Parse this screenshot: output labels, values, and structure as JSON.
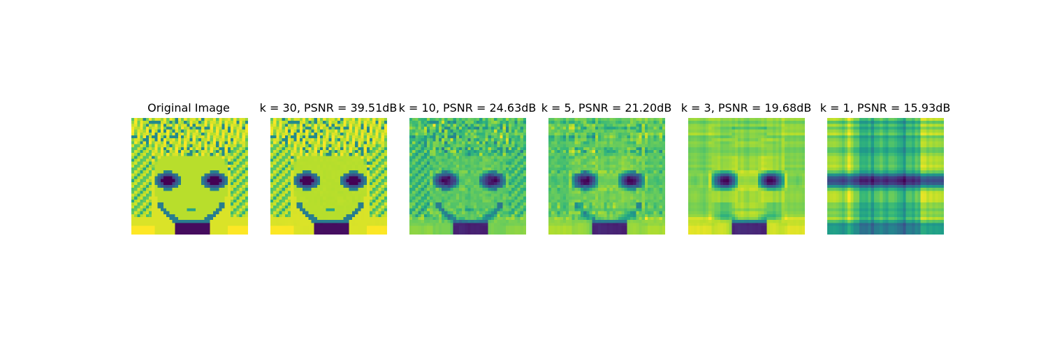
{
  "figure": {
    "colormap": "viridis",
    "panels": [
      {
        "title": "Original Image",
        "k": null,
        "psnr_db": null
      },
      {
        "title": "k = 30, PSNR = 39.51dB",
        "k": 30,
        "psnr_db": 39.51
      },
      {
        "title": "k = 10, PSNR = 24.63dB",
        "k": 10,
        "psnr_db": 24.63
      },
      {
        "title": "k = 5, PSNR = 21.20dB",
        "k": 5,
        "psnr_db": 21.2
      },
      {
        "title": "k = 3, PSNR = 19.68dB",
        "k": 3,
        "psnr_db": 19.68
      },
      {
        "title": "k = 1, PSNR = 15.93dB",
        "k": 1,
        "psnr_db": 15.93
      }
    ]
  }
}
